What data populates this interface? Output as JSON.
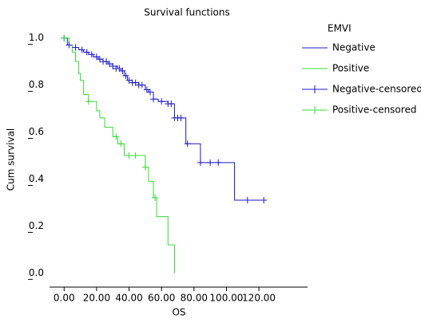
{
  "chart_data": {
    "type": "step",
    "title": "Survival functions",
    "x_label": "OS",
    "y_label": "Cum survival",
    "legend_title": "EMVI",
    "legend_position": "right",
    "xlim": [
      -9,
      150
    ],
    "ylim": [
      -0.06,
      1.06
    ],
    "xticks": [
      {
        "value": 0,
        "label": "0.00"
      },
      {
        "value": 20,
        "label": "20.00"
      },
      {
        "value": 40,
        "label": "40.00"
      },
      {
        "value": 60,
        "label": "60.00"
      },
      {
        "value": 80,
        "label": "80.00"
      },
      {
        "value": 100,
        "label": "100.00"
      },
      {
        "value": 120,
        "label": "120.00"
      }
    ],
    "yticks": [
      {
        "value": 0,
        "label": "0.0"
      },
      {
        "value": 0.2,
        "label": "0.2"
      },
      {
        "value": 0.4,
        "label": "0.4"
      },
      {
        "value": 0.6,
        "label": "0.6"
      },
      {
        "value": 0.8,
        "label": "0.8"
      },
      {
        "value": 1,
        "label": "1.0"
      }
    ],
    "series": [
      {
        "name": "Negative",
        "color": "#1a1acc",
        "kind": "line",
        "x": [
          0,
          2,
          5,
          9,
          12,
          15,
          18,
          21,
          24,
          27,
          30,
          33,
          35,
          37,
          39,
          42,
          46,
          50,
          52,
          55,
          58,
          64,
          68,
          75,
          84,
          105,
          123
        ],
        "values": [
          1.0,
          0.97,
          0.96,
          0.95,
          0.94,
          0.93,
          0.92,
          0.91,
          0.9,
          0.89,
          0.88,
          0.87,
          0.86,
          0.84,
          0.82,
          0.81,
          0.8,
          0.78,
          0.77,
          0.74,
          0.73,
          0.72,
          0.66,
          0.55,
          0.47,
          0.31,
          0.31
        ]
      },
      {
        "name": "Positive",
        "color": "#33dd33",
        "kind": "line",
        "x": [
          0,
          3,
          5,
          7,
          9,
          10,
          12,
          15,
          20,
          22,
          25,
          30,
          33,
          37,
          50,
          52,
          55,
          57,
          64,
          68
        ],
        "values": [
          1.0,
          0.97,
          0.94,
          0.9,
          0.85,
          0.82,
          0.76,
          0.73,
          0.69,
          0.66,
          0.62,
          0.58,
          0.55,
          0.5,
          0.45,
          0.39,
          0.32,
          0.24,
          0.12,
          0.0
        ]
      },
      {
        "name": "Negative-censored",
        "color": "#1a1acc",
        "kind": "censored",
        "x": [
          0,
          3,
          7,
          11,
          14,
          17,
          20,
          22,
          24,
          26,
          28,
          30,
          32,
          34,
          36,
          38,
          40,
          42,
          44,
          46,
          48,
          51,
          53,
          55,
          60,
          64,
          66,
          68,
          70,
          72,
          76,
          84,
          90,
          95,
          113,
          123
        ],
        "values": [
          1.0,
          0.97,
          0.96,
          0.95,
          0.94,
          0.93,
          0.92,
          0.91,
          0.9,
          0.9,
          0.89,
          0.88,
          0.87,
          0.87,
          0.86,
          0.84,
          0.82,
          0.81,
          0.81,
          0.8,
          0.8,
          0.78,
          0.77,
          0.74,
          0.73,
          0.72,
          0.72,
          0.66,
          0.66,
          0.66,
          0.55,
          0.47,
          0.47,
          0.47,
          0.31,
          0.31
        ]
      },
      {
        "name": "Positive-censored",
        "color": "#33dd33",
        "kind": "censored",
        "x": [
          0,
          15,
          32,
          35,
          40,
          44,
          50,
          56
        ],
        "values": [
          1.0,
          0.73,
          0.58,
          0.55,
          0.5,
          0.5,
          0.45,
          0.32
        ]
      }
    ]
  }
}
